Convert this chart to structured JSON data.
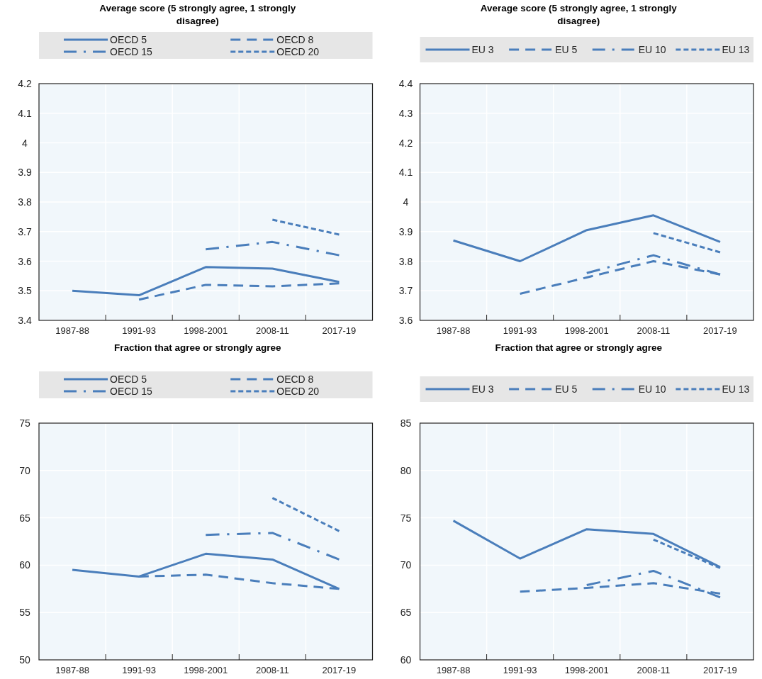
{
  "chart_data": [
    {
      "type": "line",
      "title": "Average score (5 strongly agree, 1 strongly disagree)",
      "categories": [
        "1987-88",
        "1991-93",
        "1998-2001",
        "2008-11",
        "2017-19"
      ],
      "ylim": [
        3.4,
        4.2
      ],
      "yticks": [
        3.4,
        3.5,
        3.6,
        3.7,
        3.8,
        3.9,
        4,
        4.1,
        4.2
      ],
      "grid": true,
      "legend": "top",
      "series": [
        {
          "name": "OECD 5",
          "color": "#4a7ebb",
          "line_style": "solid",
          "values": [
            3.5,
            3.485,
            3.58,
            3.575,
            3.53
          ]
        },
        {
          "name": "OECD 8",
          "color": "#4a7ebb",
          "line_style": "dashed",
          "values": [
            null,
            3.47,
            3.52,
            3.515,
            3.525
          ]
        },
        {
          "name": "OECD 15",
          "color": "#4a7ebb",
          "line_style": "dashdot",
          "values": [
            null,
            null,
            3.64,
            3.665,
            3.62
          ]
        },
        {
          "name": "OECD 20",
          "color": "#4a7ebb",
          "line_style": "dotted",
          "values": [
            null,
            null,
            null,
            3.74,
            3.69
          ]
        }
      ]
    },
    {
      "type": "line",
      "title": "Average score (5 strongly agree, 1 strongly disagree)",
      "categories": [
        "1987-88",
        "1991-93",
        "1998-2001",
        "2008-11",
        "2017-19"
      ],
      "ylim": [
        3.6,
        4.4
      ],
      "yticks": [
        3.6,
        3.7,
        3.8,
        3.9,
        4,
        4.1,
        4.2,
        4.3,
        4.4
      ],
      "grid": true,
      "legend": "top",
      "series": [
        {
          "name": "EU 3",
          "color": "#4a7ebb",
          "line_style": "solid",
          "values": [
            3.87,
            3.8,
            3.905,
            3.955,
            3.865
          ]
        },
        {
          "name": "EU 5",
          "color": "#4a7ebb",
          "line_style": "dashed",
          "values": [
            null,
            3.69,
            3.745,
            3.8,
            3.755
          ]
        },
        {
          "name": "EU 10",
          "color": "#4a7ebb",
          "line_style": "dashdot",
          "values": [
            null,
            null,
            3.76,
            3.82,
            3.755
          ]
        },
        {
          "name": "EU 13",
          "color": "#4a7ebb",
          "line_style": "dotted",
          "values": [
            null,
            null,
            null,
            3.895,
            3.83
          ]
        }
      ]
    },
    {
      "type": "line",
      "title": "Fraction that agree or strongly agree",
      "categories": [
        "1987-88",
        "1991-93",
        "1998-2001",
        "2008-11",
        "2017-19"
      ],
      "ylim": [
        50,
        75
      ],
      "yticks": [
        50,
        55,
        60,
        65,
        70,
        75
      ],
      "grid": true,
      "legend": "top",
      "series": [
        {
          "name": "OECD 5",
          "color": "#4a7ebb",
          "line_style": "solid",
          "values": [
            59.5,
            58.8,
            61.2,
            60.6,
            57.5
          ]
        },
        {
          "name": "OECD 8",
          "color": "#4a7ebb",
          "line_style": "dashed",
          "values": [
            null,
            58.8,
            59.0,
            58.1,
            57.5
          ]
        },
        {
          "name": "OECD 15",
          "color": "#4a7ebb",
          "line_style": "dashdot",
          "values": [
            null,
            null,
            63.2,
            63.4,
            60.6
          ]
        },
        {
          "name": "OECD 20",
          "color": "#4a7ebb",
          "line_style": "dotted",
          "values": [
            null,
            null,
            null,
            67.1,
            63.6
          ]
        }
      ]
    },
    {
      "type": "line",
      "title": "Fraction that agree or strongly agree",
      "categories": [
        "1987-88",
        "1991-93",
        "1998-2001",
        "2008-11",
        "2017-19"
      ],
      "ylim": [
        60,
        85
      ],
      "yticks": [
        60,
        65,
        70,
        75,
        80,
        85
      ],
      "grid": true,
      "legend": "top",
      "series": [
        {
          "name": "EU 3",
          "color": "#4a7ebb",
          "line_style": "solid",
          "values": [
            74.7,
            70.7,
            73.8,
            73.3,
            69.8
          ]
        },
        {
          "name": "EU 5",
          "color": "#4a7ebb",
          "line_style": "dashed",
          "values": [
            null,
            67.2,
            67.6,
            68.1,
            67.0
          ]
        },
        {
          "name": "EU 10",
          "color": "#4a7ebb",
          "line_style": "dashdot",
          "values": [
            null,
            null,
            67.9,
            69.4,
            66.6
          ]
        },
        {
          "name": "EU 13",
          "color": "#4a7ebb",
          "line_style": "dotted",
          "values": [
            null,
            null,
            null,
            72.7,
            69.7
          ]
        }
      ]
    }
  ]
}
